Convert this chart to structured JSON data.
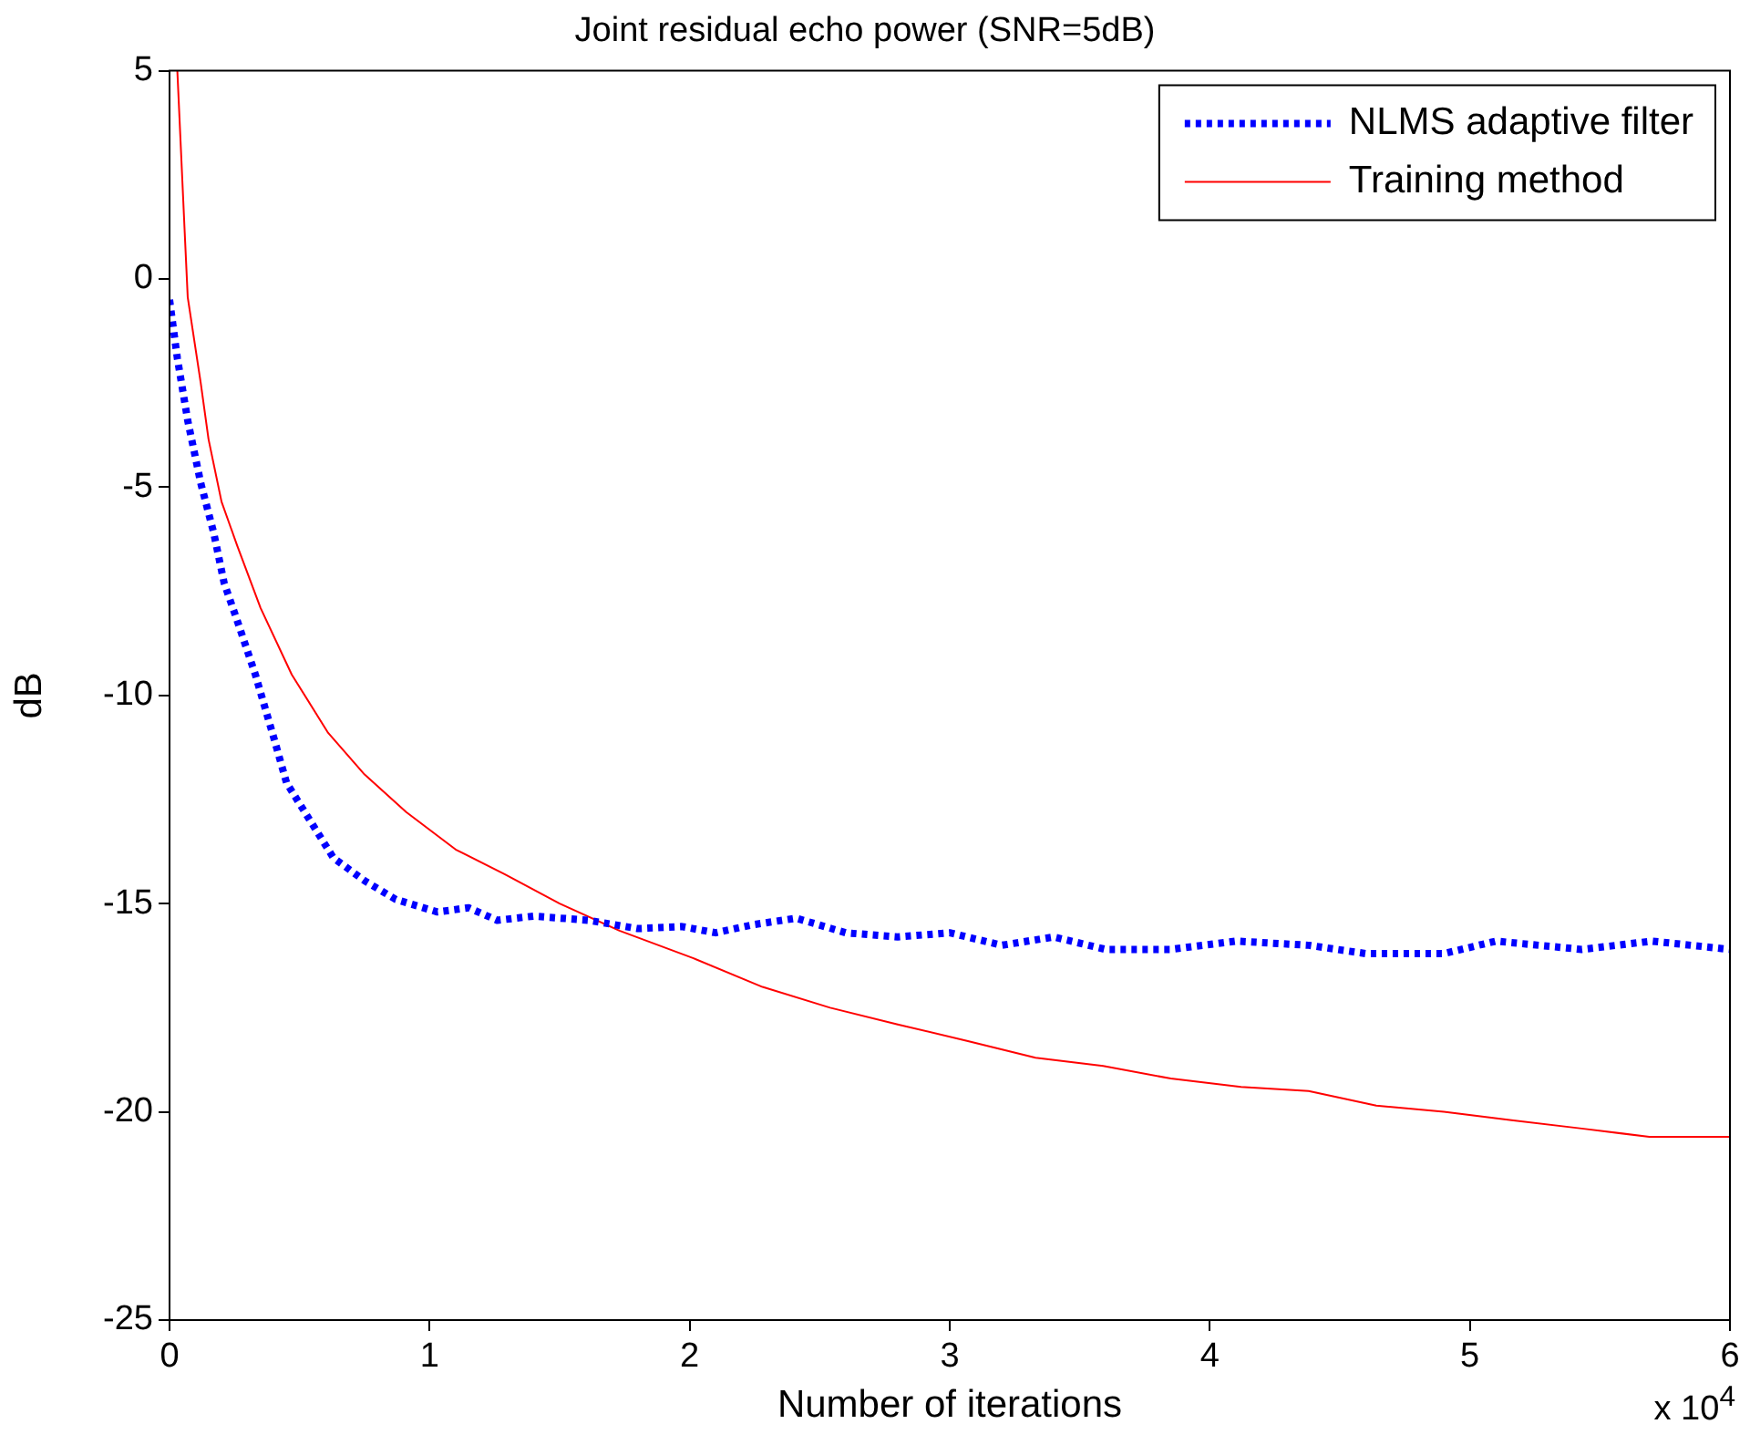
{
  "chart_data": {
    "type": "line",
    "title": "Joint residual echo power (SNR=5dB)",
    "xlabel": "Number of iterations",
    "ylabel": "dB",
    "xlim": [
      0,
      6
    ],
    "xticks": [
      0,
      1,
      2,
      3,
      4,
      5,
      6
    ],
    "ylim": [
      -25,
      5
    ],
    "yticks": [
      -25,
      -20,
      -15,
      -10,
      -5,
      0,
      5
    ],
    "grid": false,
    "legend": "top right",
    "marker": "none",
    "annotations": [
      "x 10$^{4}$"
    ],
    "series": [
      {
        "name": "NLMS adaptive filter",
        "color": "#0000ff",
        "line_style": "dotted",
        "x": [
          0,
          0.03,
          0.07,
          0.12,
          0.17,
          0.21,
          0.26,
          0.33,
          0.4,
          0.45,
          0.54,
          0.63,
          0.75,
          0.87,
          1.03,
          1.15,
          1.26,
          1.4,
          1.61,
          1.8,
          1.97,
          2.1,
          2.25,
          2.41,
          2.6,
          2.8,
          3.0,
          3.2,
          3.4,
          3.6,
          3.85,
          4.1,
          4.38,
          4.6,
          4.9,
          5.1,
          5.43,
          5.7,
          6.0
        ],
        "values": [
          -0.5,
          -1.9,
          -3.4,
          -4.9,
          -6.1,
          -7.3,
          -8.2,
          -9.5,
          -11.0,
          -12.1,
          -13.0,
          -13.9,
          -14.45,
          -14.9,
          -15.2,
          -15.1,
          -15.4,
          -15.3,
          -15.4,
          -15.6,
          -15.55,
          -15.7,
          -15.5,
          -15.35,
          -15.7,
          -15.8,
          -15.7,
          -16.0,
          -15.8,
          -16.1,
          -16.1,
          -15.9,
          -16.0,
          -16.2,
          -16.2,
          -15.9,
          -16.1,
          -15.9,
          -16.1
        ]
      },
      {
        "name": "Training method",
        "color": "#ff0000",
        "line_style": "solid",
        "x": [
          0.03,
          0.06,
          0.07,
          0.12,
          0.15,
          0.2,
          0.26,
          0.35,
          0.47,
          0.61,
          0.75,
          0.91,
          1.1,
          1.29,
          1.5,
          1.73,
          2.01,
          2.28,
          2.54,
          2.8,
          3.07,
          3.33,
          3.59,
          3.85,
          4.12,
          4.38,
          4.64,
          4.9,
          5.16,
          5.43,
          5.69,
          6.0
        ],
        "values": [
          5,
          0.9,
          -0.44,
          -2.5,
          -3.85,
          -5.35,
          -6.4,
          -7.9,
          -9.5,
          -10.9,
          -11.9,
          -12.8,
          -13.7,
          -14.3,
          -15.0,
          -15.65,
          -16.3,
          -17.0,
          -17.5,
          -17.9,
          -18.3,
          -18.7,
          -18.9,
          -19.2,
          -19.4,
          -19.5,
          -19.85,
          -20.0,
          -20.2,
          -20.4,
          -20.6,
          -20.6
        ]
      }
    ]
  }
}
